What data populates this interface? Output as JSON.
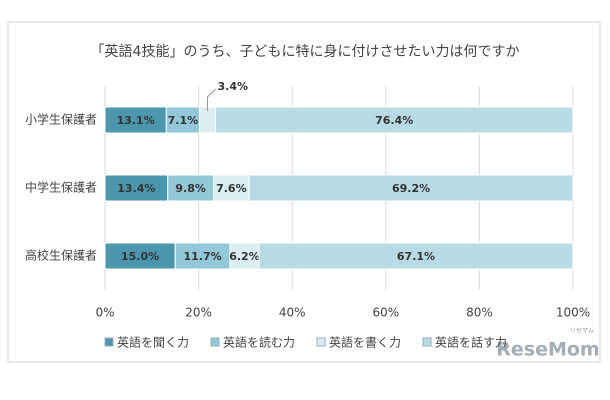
{
  "chart_data": {
    "type": "stacked-bar-horizontal",
    "title": "「英語4技能」のうち、子どもに特に身に付けさせたい力は何ですか",
    "categories": [
      "小学生保護者",
      "中学生保護者",
      "高校生保護者"
    ],
    "series": [
      {
        "name": "英語を聞く力",
        "color": "#4a97ad",
        "values": [
          13.1,
          13.4,
          15.0
        ],
        "value_labels": [
          "13.1%",
          "13.4%",
          "15.0%"
        ]
      },
      {
        "name": "英語を読む力",
        "color": "#93c8d9",
        "values": [
          7.1,
          9.8,
          11.7
        ],
        "value_labels": [
          "7.1%",
          "9.8%",
          "11.7%"
        ]
      },
      {
        "name": "英語を書く力",
        "color": "#d9edf3",
        "values": [
          3.4,
          7.6,
          6.2
        ],
        "value_labels": [
          "3.4%",
          "7.6%",
          "6.2%"
        ]
      },
      {
        "name": "英語を話す力",
        "color": "#b8dae5",
        "values": [
          76.4,
          69.2,
          67.1
        ],
        "value_labels": [
          "76.4%",
          "69.2%",
          "67.1%"
        ]
      }
    ],
    "xlim": [
      0,
      100
    ],
    "xticks": [
      {
        "value": 0,
        "label": "0%"
      },
      {
        "value": 20,
        "label": "20%"
      },
      {
        "value": 40,
        "label": "40%"
      },
      {
        "value": 60,
        "label": "60%"
      },
      {
        "value": 80,
        "label": "80%"
      },
      {
        "value": 100,
        "label": "100%"
      }
    ],
    "grid": true,
    "legend": "bottom"
  },
  "watermark": "ReseMom",
  "watermark_sub": "リセマム"
}
